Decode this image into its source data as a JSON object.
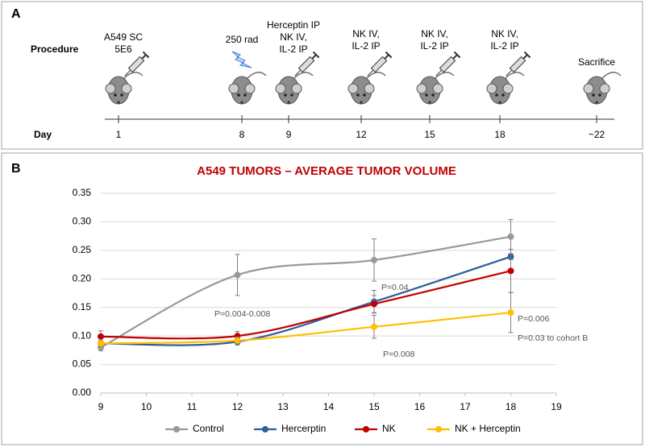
{
  "panel_a": {
    "label": "A",
    "procedure_label": "Procedure",
    "day_label": "Day",
    "events": [
      {
        "day": "1",
        "lines": [
          "A549 SC",
          "5E6"
        ]
      },
      {
        "day": "8",
        "lines": [
          "250 rad"
        ]
      },
      {
        "day": "9",
        "lines": [
          "Herceptin IP",
          "NK IV,",
          "IL-2 IP"
        ]
      },
      {
        "day": "12",
        "lines": [
          "NK IV,",
          "IL-2 IP"
        ]
      },
      {
        "day": "15",
        "lines": [
          "NK IV,",
          "IL-2 IP"
        ]
      },
      {
        "day": "18",
        "lines": [
          "NK IV,",
          "IL-2 IP"
        ]
      },
      {
        "day": "~22",
        "lines": [
          "Sacrifice"
        ]
      }
    ]
  },
  "chart_data": {
    "type": "line",
    "panel_label": "B",
    "title": "A549 TUMORS – AVERAGE TUMOR VOLUME",
    "x": [
      9,
      12,
      15,
      18
    ],
    "xlim": [
      9,
      19
    ],
    "xticks": [
      9,
      10,
      11,
      12,
      13,
      14,
      15,
      16,
      17,
      18,
      19
    ],
    "ylim": [
      0,
      0.35
    ],
    "yticks": [
      {
        "value": 0,
        "label": "0.00"
      },
      0.05,
      {
        "value": 0.1,
        "label": "0.10"
      },
      0.15,
      {
        "value": 0.2,
        "label": "0.20"
      },
      0.25,
      {
        "value": 0.3,
        "label": "0.30"
      },
      0.35
    ],
    "grid": true,
    "smooth": true,
    "legend": "bottom",
    "series": [
      {
        "name": "Control",
        "color": "#999999",
        "values": [
          0.08,
          0.207,
          0.233,
          0.274
        ],
        "errors": [
          0.006,
          0.036,
          0.037,
          0.03
        ]
      },
      {
        "name": "Hercerptin",
        "color": "#2f5d9b",
        "values": [
          0.087,
          0.09,
          0.16,
          0.239
        ],
        "errors": [
          0.005,
          0.006,
          0.02,
          0.005
        ]
      },
      {
        "name": "NK",
        "color": "#c00000",
        "values": [
          0.099,
          0.1,
          0.156,
          0.214
        ],
        "errors": [
          0.01,
          0.008,
          0.015,
          0.038
        ]
      },
      {
        "name": "NK + Herceptin",
        "color": "#ffc000",
        "values": [
          0.087,
          0.092,
          0.116,
          0.141
        ],
        "errors": [
          0.005,
          0.006,
          0.02,
          0.035
        ]
      }
    ],
    "annotations": [
      "P=0.004-0.008",
      "P=0.04",
      "P=0.006",
      "P=0.03 to cohort B",
      "P=0.008"
    ]
  }
}
